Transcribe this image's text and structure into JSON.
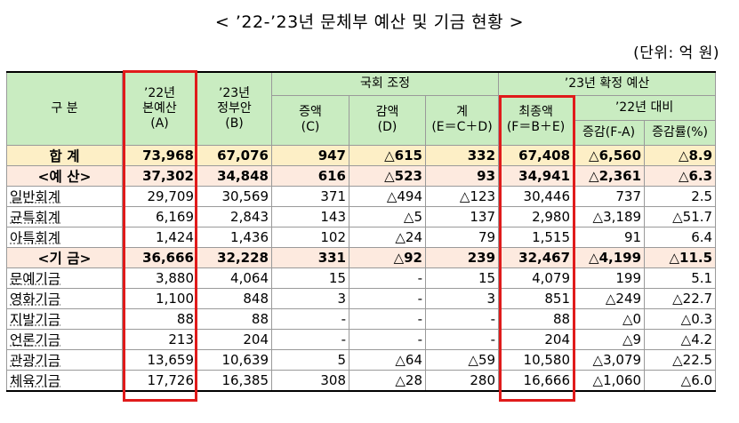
{
  "title": "< ’22-’23년 문체부 예산 및 기금 현황 >",
  "unit": "(단위: 억 원)",
  "header": {
    "gubun": "구   분",
    "col_a": [
      "’22년",
      "본예산",
      "(A)"
    ],
    "col_b": [
      "’23년",
      "정부안",
      "(B)"
    ],
    "group_assembly": "국회 조정",
    "col_c": [
      "증액",
      "(C)"
    ],
    "col_d": [
      "감액",
      "(D)"
    ],
    "col_e": [
      "계",
      "(E＝C＋D)"
    ],
    "group_final": "’23년 확정 예산",
    "col_f": [
      "최종액",
      "(F＝B＋E)"
    ],
    "group_vs22": "’22년 대비",
    "col_g": "증감(F-A)",
    "col_h": "증감률(%)"
  },
  "rows": [
    {
      "label": "합 계",
      "type": "sum",
      "a": "73,968",
      "b": "67,076",
      "c": "947",
      "d": "△615",
      "e": "332",
      "f": "67,408",
      "g": "△6,560",
      "h": "△8.9"
    },
    {
      "label": "<예 산>",
      "type": "sub",
      "a": "37,302",
      "b": "34,848",
      "c": "616",
      "d": "△523",
      "e": "93",
      "f": "34,941",
      "g": "△2,361",
      "h": "△6.3"
    },
    {
      "label": "일반회계",
      "type": "item",
      "a": "29,709",
      "b": "30,569",
      "c": "371",
      "d": "△494",
      "e": "△123",
      "f": "30,446",
      "g": "737",
      "h": "2.5"
    },
    {
      "label": "균특회계",
      "type": "item",
      "a": "6,169",
      "b": "2,843",
      "c": "143",
      "d": "△5",
      "e": "137",
      "f": "2,980",
      "g": "△3,189",
      "h": "△51.7"
    },
    {
      "label": "아특회계",
      "type": "item",
      "a": "1,424",
      "b": "1,436",
      "c": "102",
      "d": "△24",
      "e": "79",
      "f": "1,515",
      "g": "91",
      "h": "6.4"
    },
    {
      "label": "<기 금>",
      "type": "sub",
      "a": "36,666",
      "b": "32,228",
      "c": "331",
      "d": "△92",
      "e": "239",
      "f": "32,467",
      "g": "△4,199",
      "h": "△11.5"
    },
    {
      "label": "문예기금",
      "type": "item",
      "a": "3,880",
      "b": "4,064",
      "c": "15",
      "d": "-",
      "e": "15",
      "f": "4,079",
      "g": "199",
      "h": "5.1"
    },
    {
      "label": "영화기금",
      "type": "item",
      "a": "1,100",
      "b": "848",
      "c": "3",
      "d": "-",
      "e": "3",
      "f": "851",
      "g": "△249",
      "h": "△22.7"
    },
    {
      "label": "지발기금",
      "type": "item",
      "a": "88",
      "b": "88",
      "c": "-",
      "d": "-",
      "e": "-",
      "f": "88",
      "g": "△0",
      "h": "△0.3"
    },
    {
      "label": "언론기금",
      "type": "item",
      "a": "213",
      "b": "204",
      "c": "-",
      "d": "-",
      "e": "-",
      "f": "204",
      "g": "△9",
      "h": "△4.2"
    },
    {
      "label": "관광기금",
      "type": "item",
      "a": "13,659",
      "b": "10,639",
      "c": "5",
      "d": "△64",
      "e": "△59",
      "f": "10,580",
      "g": "△3,079",
      "h": "△22.5"
    },
    {
      "label": "체육기금",
      "type": "item",
      "a": "17,726",
      "b": "16,385",
      "c": "308",
      "d": "△28",
      "e": "280",
      "f": "16,666",
      "g": "△1,060",
      "h": "△6.0"
    }
  ],
  "colors": {
    "header_bg": "#c9ecc1",
    "sum_bg": "#fdefc6",
    "sub_bg": "#fdeadf",
    "highlight": "#e01b1b"
  }
}
